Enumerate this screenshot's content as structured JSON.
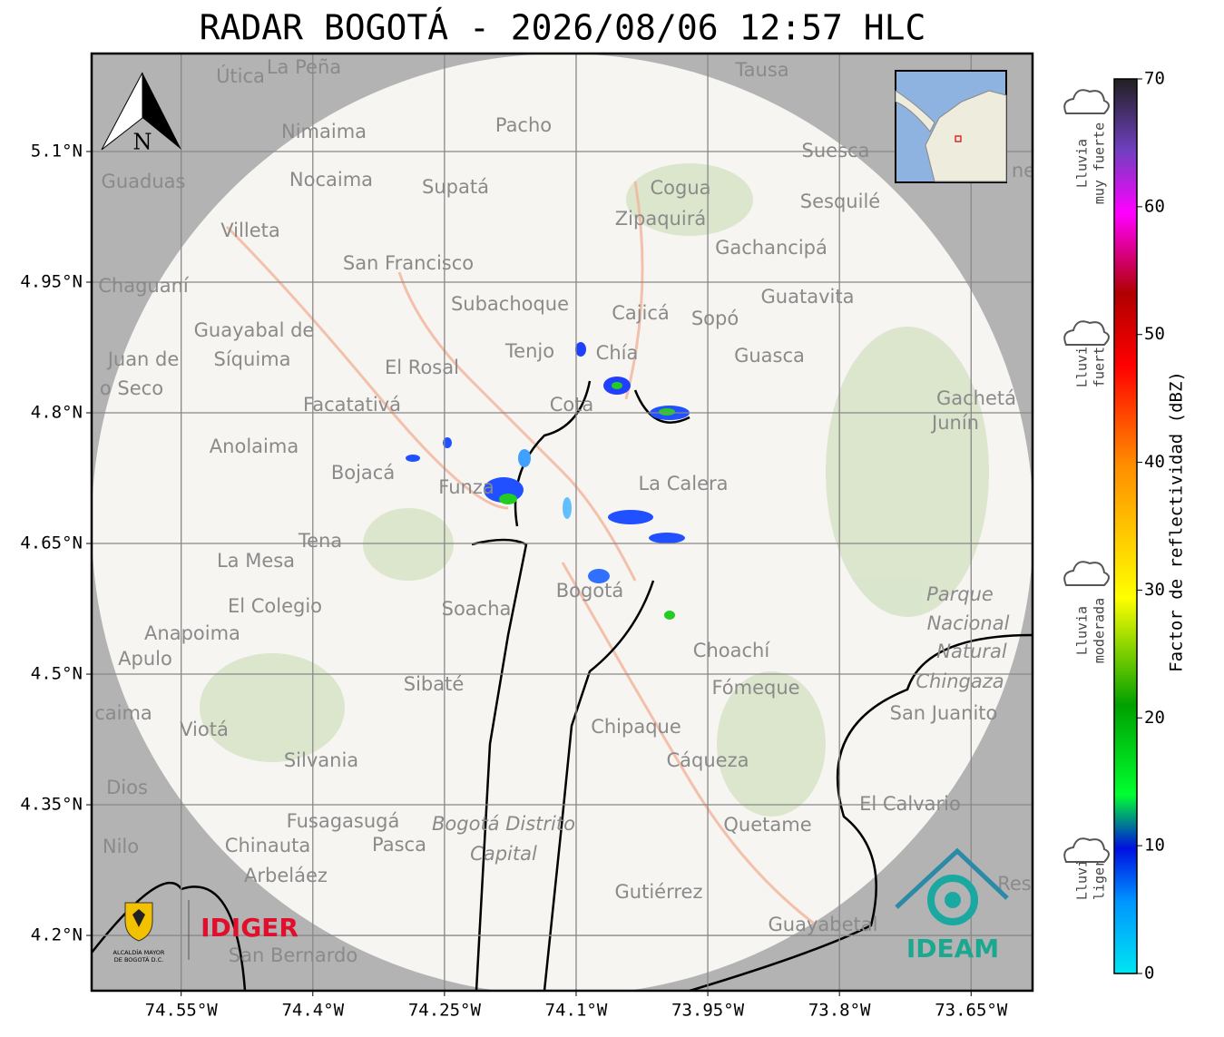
{
  "title": "RADAR BOGOTÁ - 2026/08/06 12:57 HLC",
  "north": "N",
  "lon_lim": [
    -74.652,
    -73.58
  ],
  "lat_lim": [
    4.1365,
    5.2125
  ],
  "lon_ticks": [
    {
      "value": -74.55,
      "label": "74.55°W"
    },
    {
      "value": -74.4,
      "label": "74.4°W"
    },
    {
      "value": -74.25,
      "label": "74.25°W"
    },
    {
      "value": -74.1,
      "label": "74.1°W"
    },
    {
      "value": -73.95,
      "label": "73.95°W"
    },
    {
      "value": -73.8,
      "label": "73.8°W"
    },
    {
      "value": -73.65,
      "label": "73.65°W"
    }
  ],
  "lat_ticks": [
    {
      "value": 5.1,
      "label": "5.1°N"
    },
    {
      "value": 4.95,
      "label": "4.95°N"
    },
    {
      "value": 4.8,
      "label": "4.8°N"
    },
    {
      "value": 4.65,
      "label": "4.65°N"
    },
    {
      "value": 4.5,
      "label": "4.5°N"
    },
    {
      "value": 4.35,
      "label": "4.35°N"
    },
    {
      "value": 4.2,
      "label": "4.2°N"
    }
  ],
  "places": [
    "Útica",
    "La Peña",
    "Tausa",
    "Pacho",
    "Nimaima",
    "Guaduas",
    "Nocaima",
    "Supatá",
    "Cogua",
    "Suesca",
    "Sesquilé",
    "Zipaquirá",
    "Villeta",
    "Gachancipá",
    "San Francisco",
    "Chaguaní",
    "Subachoque",
    "Guatavita",
    "Cajicá",
    "Sopó",
    "Guayabal de",
    "Síquima",
    "Juan de",
    "Tenjo",
    "Chía",
    "Guasca",
    "El Rosal",
    "o Seco",
    "Facatativá",
    "Cota",
    "Gachetá",
    "Junín",
    "Anolaima",
    "Bojacá",
    "La Calera",
    "Funza",
    "Tena",
    "La Mesa",
    "Bogotá",
    "El Colegio",
    "Soacha",
    "Anapoima",
    "Apulo",
    "Choachí",
    "Sibaté",
    "Fómeque",
    "San Juanito",
    "caima",
    "Viotá",
    "Chipaque",
    "Silvania",
    "Cáqueza",
    "Dios",
    "El Calvario",
    "Fusagasugá",
    "Quetame",
    "Nilo",
    "Chinauta",
    "Pasca",
    "Arbeláez",
    "Gutiérrez",
    "Guayabetal",
    "San Bernardo",
    "Res",
    "ne"
  ],
  "park": [
    "Parque",
    "Nacional",
    "Natural",
    "Chingaza"
  ],
  "district": [
    "Bogotá Distrito",
    "Capital"
  ],
  "colorbar": {
    "label": "Factor de reflectividad (dBZ)",
    "lim": [
      0,
      70
    ],
    "ticks": [
      0,
      10,
      20,
      30,
      40,
      50,
      60,
      70
    ]
  },
  "rain_levels": [
    [
      "Lluvia",
      "ligera"
    ],
    [
      "Lluvia",
      "moderada"
    ],
    [
      "Lluvia",
      "fuerte"
    ],
    [
      "Lluvia",
      "muy fuerte"
    ]
  ],
  "logos": {
    "alcaldia": [
      "ALCALDÍA MAYOR",
      "DE BOGOTÁ D.C."
    ],
    "idiger": "IDIGER",
    "ideam": "IDEAM"
  }
}
